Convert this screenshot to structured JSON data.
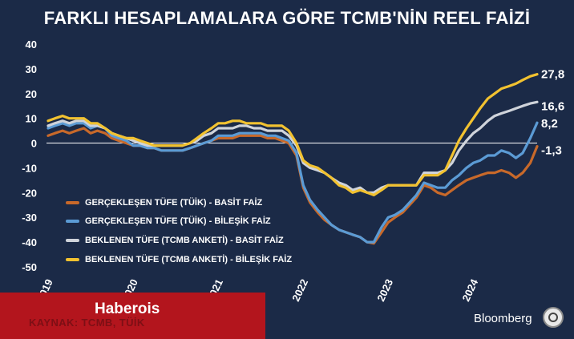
{
  "title": "FARKLI HESAPLAMALARA GÖRE TCMB'NİN REEL FAİZİ",
  "brand": "Bloomberg",
  "watermark": "Haberois",
  "source": "KAYNAK: TCMB, TÜİK",
  "colors": {
    "background": "#1b2a47",
    "gercek_basit": "#c8692a",
    "gercek_bilesik": "#5b9bd5",
    "beklenen_basit": "#cfd3da",
    "beklenen_bilesik": "#f2c230",
    "source_bar": "#b3151d"
  },
  "chart_data": {
    "type": "line",
    "title": "FARKLI HESAPLAMALARA GÖRE TCMB'NİN REEL FAİZİ",
    "ylim": [
      -50,
      40
    ],
    "yticks": [
      "40",
      "30",
      "20",
      "10",
      "0",
      "-10",
      "-20",
      "-30",
      "-40",
      "-50"
    ],
    "xticks": [
      {
        "label": "2019",
        "x": 2019.0
      },
      {
        "label": "2020",
        "x": 2020.0
      },
      {
        "label": "2021",
        "x": 2021.0
      },
      {
        "label": "2022",
        "x": 2022.0
      },
      {
        "label": "2023",
        "x": 2023.0
      },
      {
        "label": "2024",
        "x": 2024.0
      }
    ],
    "x_range": [
      2019.0,
      2024.9
    ],
    "grid": false,
    "legend_position": "bottom-left",
    "series": [
      {
        "name": "GERÇEKLEŞEN TÜFE (TÜİK) - BASİT FAİZ",
        "color": "#c8692a",
        "end_label": "-1,3",
        "points": [
          [
            2019.0,
            3
          ],
          [
            2019.08,
            4
          ],
          [
            2019.17,
            5
          ],
          [
            2019.25,
            4
          ],
          [
            2019.33,
            5
          ],
          [
            2019.42,
            6
          ],
          [
            2019.5,
            4
          ],
          [
            2019.58,
            5
          ],
          [
            2019.67,
            4
          ],
          [
            2019.75,
            2
          ],
          [
            2019.83,
            1
          ],
          [
            2019.92,
            0
          ],
          [
            2020.0,
            -1
          ],
          [
            2020.08,
            -1
          ],
          [
            2020.17,
            -2
          ],
          [
            2020.25,
            -2
          ],
          [
            2020.33,
            -3
          ],
          [
            2020.42,
            -3
          ],
          [
            2020.5,
            -3
          ],
          [
            2020.58,
            -3
          ],
          [
            2020.67,
            -2
          ],
          [
            2020.75,
            -1
          ],
          [
            2020.83,
            0
          ],
          [
            2020.92,
            1
          ],
          [
            2021.0,
            2
          ],
          [
            2021.08,
            2
          ],
          [
            2021.17,
            2
          ],
          [
            2021.25,
            3
          ],
          [
            2021.33,
            3
          ],
          [
            2021.42,
            3
          ],
          [
            2021.5,
            3
          ],
          [
            2021.58,
            2
          ],
          [
            2021.67,
            2
          ],
          [
            2021.75,
            1
          ],
          [
            2021.83,
            0
          ],
          [
            2021.92,
            -5
          ],
          [
            2022.0,
            -18
          ],
          [
            2022.08,
            -24
          ],
          [
            2022.17,
            -28
          ],
          [
            2022.25,
            -31
          ],
          [
            2022.33,
            -33
          ],
          [
            2022.42,
            -35
          ],
          [
            2022.5,
            -36
          ],
          [
            2022.58,
            -37
          ],
          [
            2022.67,
            -38
          ],
          [
            2022.75,
            -40
          ],
          [
            2022.83,
            -40.5
          ],
          [
            2022.92,
            -36
          ],
          [
            2023.0,
            -32
          ],
          [
            2023.08,
            -30
          ],
          [
            2023.17,
            -28
          ],
          [
            2023.25,
            -25
          ],
          [
            2023.33,
            -22
          ],
          [
            2023.42,
            -17
          ],
          [
            2023.5,
            -18
          ],
          [
            2023.58,
            -20
          ],
          [
            2023.67,
            -21
          ],
          [
            2023.75,
            -19
          ],
          [
            2023.83,
            -17
          ],
          [
            2023.92,
            -15
          ],
          [
            2024.0,
            -14
          ],
          [
            2024.08,
            -13
          ],
          [
            2024.17,
            -12
          ],
          [
            2024.25,
            -12
          ],
          [
            2024.33,
            -11
          ],
          [
            2024.42,
            -12
          ],
          [
            2024.5,
            -14
          ],
          [
            2024.58,
            -12
          ],
          [
            2024.67,
            -8
          ],
          [
            2024.75,
            -1.3
          ]
        ]
      },
      {
        "name": "GERÇEKLEŞEN TÜFE (TÜİK) - BİLEŞİK FAİZ",
        "color": "#5b9bd5",
        "end_label": "8,2",
        "points": [
          [
            2019.0,
            6
          ],
          [
            2019.08,
            7
          ],
          [
            2019.17,
            8
          ],
          [
            2019.25,
            7
          ],
          [
            2019.33,
            8
          ],
          [
            2019.42,
            8
          ],
          [
            2019.5,
            6
          ],
          [
            2019.58,
            7
          ],
          [
            2019.67,
            6
          ],
          [
            2019.75,
            3
          ],
          [
            2019.83,
            2
          ],
          [
            2019.92,
            1
          ],
          [
            2020.0,
            -1
          ],
          [
            2020.08,
            -1
          ],
          [
            2020.17,
            -2
          ],
          [
            2020.25,
            -2
          ],
          [
            2020.33,
            -3
          ],
          [
            2020.42,
            -3
          ],
          [
            2020.5,
            -3
          ],
          [
            2020.58,
            -3
          ],
          [
            2020.67,
            -2
          ],
          [
            2020.75,
            -1
          ],
          [
            2020.83,
            0
          ],
          [
            2020.92,
            1
          ],
          [
            2021.0,
            3
          ],
          [
            2021.08,
            3
          ],
          [
            2021.17,
            3
          ],
          [
            2021.25,
            4
          ],
          [
            2021.33,
            4
          ],
          [
            2021.42,
            4
          ],
          [
            2021.5,
            4
          ],
          [
            2021.58,
            3
          ],
          [
            2021.67,
            3
          ],
          [
            2021.75,
            2
          ],
          [
            2021.83,
            1
          ],
          [
            2021.92,
            -4
          ],
          [
            2022.0,
            -17
          ],
          [
            2022.08,
            -23
          ],
          [
            2022.17,
            -27
          ],
          [
            2022.25,
            -30
          ],
          [
            2022.33,
            -33
          ],
          [
            2022.42,
            -35
          ],
          [
            2022.5,
            -36
          ],
          [
            2022.58,
            -37
          ],
          [
            2022.67,
            -38
          ],
          [
            2022.75,
            -40
          ],
          [
            2022.83,
            -40
          ],
          [
            2022.92,
            -34
          ],
          [
            2023.0,
            -30
          ],
          [
            2023.08,
            -29
          ],
          [
            2023.17,
            -27
          ],
          [
            2023.25,
            -24
          ],
          [
            2023.33,
            -21
          ],
          [
            2023.42,
            -16
          ],
          [
            2023.5,
            -17
          ],
          [
            2023.58,
            -18
          ],
          [
            2023.67,
            -18
          ],
          [
            2023.75,
            -15
          ],
          [
            2023.83,
            -13
          ],
          [
            2023.92,
            -10
          ],
          [
            2024.0,
            -8
          ],
          [
            2024.08,
            -7
          ],
          [
            2024.17,
            -5
          ],
          [
            2024.25,
            -5
          ],
          [
            2024.33,
            -3
          ],
          [
            2024.42,
            -4
          ],
          [
            2024.5,
            -6
          ],
          [
            2024.58,
            -4
          ],
          [
            2024.67,
            2
          ],
          [
            2024.75,
            8.2
          ]
        ]
      },
      {
        "name": "BEKLENEN TÜFE (TCMB ANKETİ) - BASİT FAİZ",
        "color": "#cfd3da",
        "end_label": "16,6",
        "points": [
          [
            2019.0,
            7
          ],
          [
            2019.08,
            8
          ],
          [
            2019.17,
            9
          ],
          [
            2019.25,
            8
          ],
          [
            2019.33,
            9
          ],
          [
            2019.42,
            9
          ],
          [
            2019.5,
            7
          ],
          [
            2019.58,
            7
          ],
          [
            2019.67,
            6
          ],
          [
            2019.75,
            4
          ],
          [
            2019.83,
            3
          ],
          [
            2019.92,
            2
          ],
          [
            2020.0,
            1
          ],
          [
            2020.08,
            0
          ],
          [
            2020.17,
            -1
          ],
          [
            2020.25,
            -1
          ],
          [
            2020.33,
            -1
          ],
          [
            2020.42,
            -1
          ],
          [
            2020.5,
            -1
          ],
          [
            2020.58,
            -1
          ],
          [
            2020.67,
            0
          ],
          [
            2020.75,
            1
          ],
          [
            2020.83,
            3
          ],
          [
            2020.92,
            4
          ],
          [
            2021.0,
            6
          ],
          [
            2021.08,
            6
          ],
          [
            2021.17,
            6
          ],
          [
            2021.25,
            7
          ],
          [
            2021.33,
            7
          ],
          [
            2021.42,
            6
          ],
          [
            2021.5,
            6
          ],
          [
            2021.58,
            5
          ],
          [
            2021.67,
            5
          ],
          [
            2021.75,
            5
          ],
          [
            2021.83,
            3
          ],
          [
            2021.92,
            -1
          ],
          [
            2022.0,
            -8
          ],
          [
            2022.08,
            -10
          ],
          [
            2022.17,
            -11
          ],
          [
            2022.25,
            -12
          ],
          [
            2022.33,
            -14
          ],
          [
            2022.42,
            -16
          ],
          [
            2022.5,
            -17
          ],
          [
            2022.58,
            -19
          ],
          [
            2022.67,
            -18
          ],
          [
            2022.75,
            -20
          ],
          [
            2022.83,
            -20
          ],
          [
            2022.92,
            -18
          ],
          [
            2023.0,
            -17
          ],
          [
            2023.08,
            -17
          ],
          [
            2023.17,
            -17
          ],
          [
            2023.25,
            -17
          ],
          [
            2023.33,
            -17
          ],
          [
            2023.42,
            -12
          ],
          [
            2023.5,
            -12
          ],
          [
            2023.58,
            -12
          ],
          [
            2023.67,
            -11
          ],
          [
            2023.75,
            -8
          ],
          [
            2023.83,
            -3
          ],
          [
            2023.92,
            1
          ],
          [
            2024.0,
            4
          ],
          [
            2024.08,
            6
          ],
          [
            2024.17,
            9
          ],
          [
            2024.25,
            11
          ],
          [
            2024.33,
            12
          ],
          [
            2024.42,
            13
          ],
          [
            2024.5,
            14
          ],
          [
            2024.58,
            15
          ],
          [
            2024.67,
            16
          ],
          [
            2024.75,
            16.6
          ]
        ]
      },
      {
        "name": "BEKLENEN TÜFE (TCMB ANKETİ) - BİLEŞİK FAİZ",
        "color": "#f2c230",
        "end_label": "27,8",
        "points": [
          [
            2019.0,
            9
          ],
          [
            2019.08,
            10
          ],
          [
            2019.17,
            11
          ],
          [
            2019.25,
            10
          ],
          [
            2019.33,
            10
          ],
          [
            2019.42,
            10
          ],
          [
            2019.5,
            8
          ],
          [
            2019.58,
            8
          ],
          [
            2019.67,
            6
          ],
          [
            2019.75,
            4
          ],
          [
            2019.83,
            3
          ],
          [
            2019.92,
            2
          ],
          [
            2020.0,
            2
          ],
          [
            2020.08,
            1
          ],
          [
            2020.17,
            0
          ],
          [
            2020.25,
            -1
          ],
          [
            2020.33,
            -1
          ],
          [
            2020.42,
            -1
          ],
          [
            2020.5,
            -1
          ],
          [
            2020.58,
            -1
          ],
          [
            2020.67,
            0
          ],
          [
            2020.75,
            2
          ],
          [
            2020.83,
            4
          ],
          [
            2020.92,
            6
          ],
          [
            2021.0,
            8
          ],
          [
            2021.08,
            8
          ],
          [
            2021.17,
            9
          ],
          [
            2021.25,
            9
          ],
          [
            2021.33,
            8
          ],
          [
            2021.42,
            8
          ],
          [
            2021.5,
            8
          ],
          [
            2021.58,
            7
          ],
          [
            2021.67,
            7
          ],
          [
            2021.75,
            7
          ],
          [
            2021.83,
            5
          ],
          [
            2021.92,
            0
          ],
          [
            2022.0,
            -7
          ],
          [
            2022.08,
            -9
          ],
          [
            2022.17,
            -10
          ],
          [
            2022.25,
            -12
          ],
          [
            2022.33,
            -14
          ],
          [
            2022.42,
            -17
          ],
          [
            2022.5,
            -18
          ],
          [
            2022.58,
            -20
          ],
          [
            2022.67,
            -19
          ],
          [
            2022.75,
            -20
          ],
          [
            2022.83,
            -21
          ],
          [
            2022.92,
            -19
          ],
          [
            2023.0,
            -17
          ],
          [
            2023.08,
            -17
          ],
          [
            2023.17,
            -17
          ],
          [
            2023.25,
            -17
          ],
          [
            2023.33,
            -17
          ],
          [
            2023.42,
            -13
          ],
          [
            2023.5,
            -13
          ],
          [
            2023.58,
            -13
          ],
          [
            2023.67,
            -11
          ],
          [
            2023.75,
            -5
          ],
          [
            2023.83,
            1
          ],
          [
            2023.92,
            6
          ],
          [
            2024.0,
            10
          ],
          [
            2024.08,
            14
          ],
          [
            2024.17,
            18
          ],
          [
            2024.25,
            20
          ],
          [
            2024.33,
            22
          ],
          [
            2024.42,
            23
          ],
          [
            2024.5,
            24
          ],
          [
            2024.58,
            25.5
          ],
          [
            2024.67,
            27
          ],
          [
            2024.75,
            27.8
          ]
        ]
      }
    ]
  }
}
